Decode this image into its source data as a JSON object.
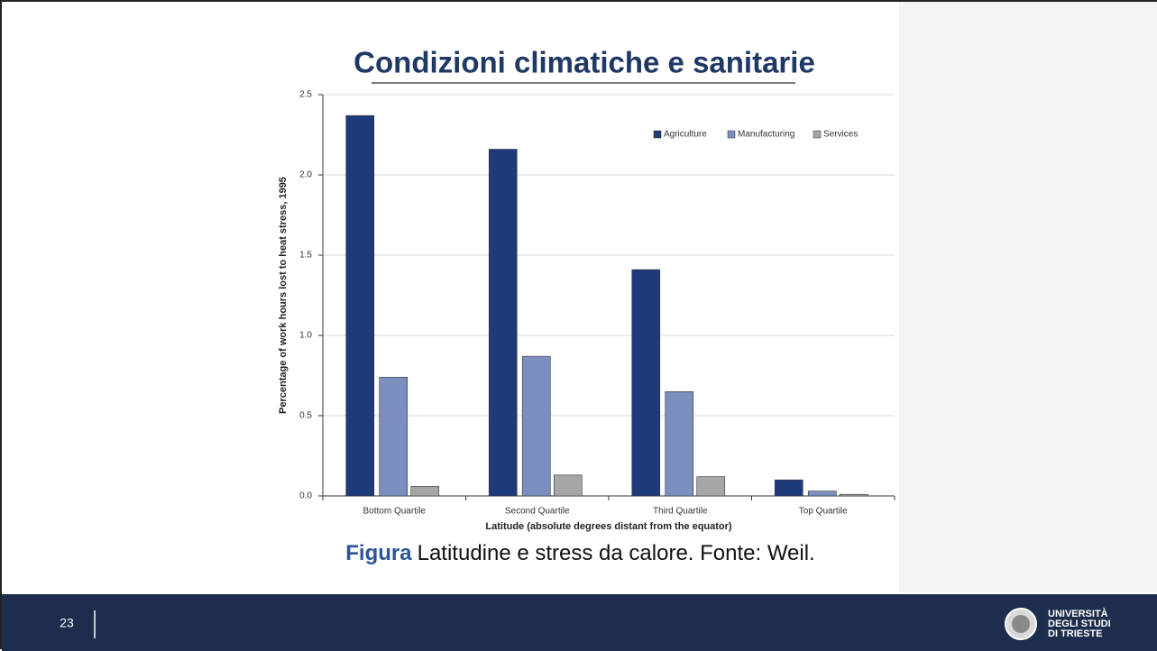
{
  "slide": {
    "title": "Condizioni climatiche e sanitarie",
    "caption": {
      "label": "Figura",
      "text": "Latitudine e stress da calore. Fonte: Weil."
    },
    "page_number": "23",
    "logo": [
      "UNIVERSITÀ",
      "DEGLI STUDI",
      "DI TRIESTE"
    ]
  },
  "chart_data": {
    "type": "bar",
    "x_label": "Latitude (absolute degrees distant from the equator)",
    "y_label": "Percentage of work hours lost to heat stress, 1995",
    "categories": [
      "Bottom Quartile",
      "Second Quartile",
      "Third Quartile",
      "Top Quartile"
    ],
    "series": [
      {
        "name": "Agriculture",
        "color": "#1f3a78",
        "values": [
          2.37,
          2.16,
          1.41,
          0.1
        ]
      },
      {
        "name": "Manufacturing",
        "color": "#7b8fbf",
        "values": [
          0.74,
          0.87,
          0.65,
          0.03
        ]
      },
      {
        "name": "Services",
        "color": "#a6a6a6",
        "values": [
          0.06,
          0.13,
          0.12,
          0.01
        ]
      }
    ],
    "ylim": [
      0,
      2.5
    ],
    "yticks": [
      {
        "value": 0,
        "label": "0.0"
      },
      0.5,
      {
        "value": 1,
        "label": "1.0"
      },
      1.5,
      {
        "value": 2,
        "label": "2.0"
      },
      2.5
    ],
    "grid": true,
    "legend": "top-right"
  }
}
